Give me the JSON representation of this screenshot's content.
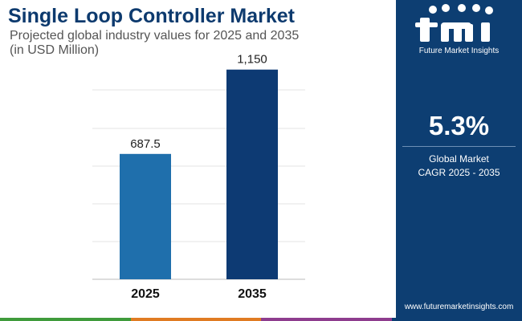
{
  "header": {
    "title": "Single Loop Controller Market",
    "subtitle_line1": "Projected global industry values for 2025 and 2035",
    "subtitle_line2": "(in USD Million)"
  },
  "chart_data": {
    "type": "bar",
    "categories": [
      "2025",
      "2035"
    ],
    "values": [
      687.5,
      1150
    ],
    "value_labels": [
      "687.5",
      "1,150"
    ],
    "title": "Single Loop Controller Market",
    "subtitle": "Projected global industry values for 2025 and 2035 (in USD Million)",
    "xlabel": "",
    "ylabel": "",
    "ylim": [
      0,
      1250
    ],
    "grid": true,
    "bar_colors": [
      "#1f6fac",
      "#0d3a73"
    ]
  },
  "sidebar": {
    "logo_text": "Future Market Insights",
    "cagr_value": "5.3%",
    "cagr_label_line1": "Global Market",
    "cagr_label_line2": "CAGR 2025 - 2035",
    "url": "www.futuremarketinsights.com"
  },
  "colors": {
    "title": "#0d3a6e",
    "panel": "#0d3e72",
    "bottom_bar": [
      "#3f9b3b",
      "#e07b22",
      "#8e3c8e",
      "#0d3e72"
    ]
  }
}
